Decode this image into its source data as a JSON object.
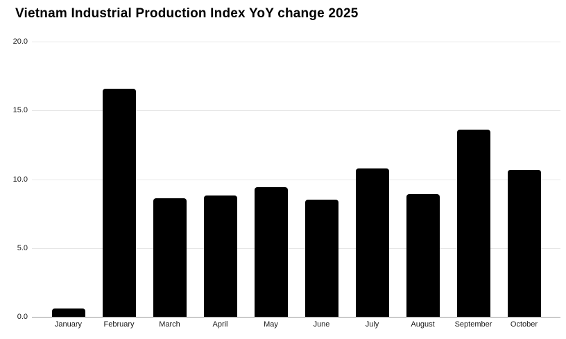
{
  "chart_data": {
    "type": "bar",
    "title": "Vietnam Industrial Production Index YoY change 2025",
    "categories": [
      "January",
      "February",
      "March",
      "April",
      "May",
      "June",
      "July",
      "August",
      "September",
      "October"
    ],
    "values": [
      0.6,
      16.6,
      8.6,
      8.8,
      9.4,
      8.5,
      10.8,
      8.9,
      13.6,
      10.7
    ],
    "xlabel": "",
    "ylabel": "",
    "ylim": [
      0,
      20
    ],
    "ytick_values": [
      20,
      15,
      10,
      5,
      0
    ],
    "ytick_labels": [
      "20.0",
      "15.0",
      "10.0",
      "5.0",
      "0.0"
    ],
    "grid": true,
    "legend": false,
    "bar_color": "#000000",
    "gridline_color": "#e6e6e6",
    "axis_line_color": "#9a9a9a",
    "background_color": "#ffffff",
    "text_color": "#1a1a1a"
  }
}
